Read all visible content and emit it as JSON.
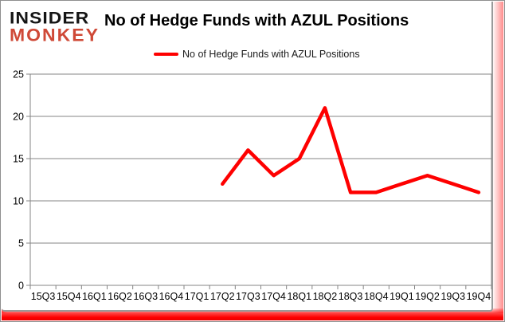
{
  "brand": {
    "line1": "INSIDER",
    "line2": "MONKEY",
    "line1_color": "#141414",
    "line2_color": "#cf4937"
  },
  "header": {
    "title": "No of Hedge Funds with AZUL Positions"
  },
  "legend": {
    "label": "No of Hedge Funds with AZUL Positions",
    "swatch_color": "#fe0000"
  },
  "chart_data": {
    "type": "line",
    "title": "No of Hedge Funds with AZUL Positions",
    "categories": [
      "15Q3",
      "15Q4",
      "16Q1",
      "16Q2",
      "16Q3",
      "16Q4",
      "17Q1",
      "17Q2",
      "17Q3",
      "17Q4",
      "18Q1",
      "18Q2",
      "18Q3",
      "18Q4",
      "19Q1",
      "19Q2",
      "19Q3",
      "19Q4"
    ],
    "series": [
      {
        "name": "No of Hedge Funds with AZUL Positions",
        "color": "#fe0000",
        "values": [
          null,
          null,
          null,
          null,
          null,
          null,
          null,
          12,
          16,
          13,
          15,
          21,
          11,
          11,
          12,
          13,
          12,
          11
        ]
      }
    ],
    "ylim": [
      0,
      25
    ],
    "ytick_step": 5,
    "ytick_labels": [
      "0",
      "5",
      "10",
      "15",
      "20",
      "25"
    ],
    "grid": "horizontal",
    "legend_position": "top",
    "axis_color": "#848484",
    "label_color": "#000000",
    "line_width": 4.5
  }
}
